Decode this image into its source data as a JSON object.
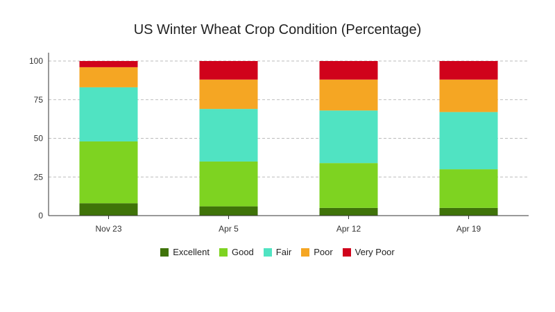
{
  "chart_data": {
    "type": "bar",
    "stacked": true,
    "title": "US Winter Wheat Crop Condition (Percentage)",
    "xlabel": "",
    "ylabel": "",
    "ylim": [
      0,
      100
    ],
    "yticks": [
      0,
      25,
      50,
      75,
      100
    ],
    "grid": true,
    "legend_position": "bottom",
    "categories": [
      "Nov 23",
      "Apr 5",
      "Apr 12",
      "Apr 19"
    ],
    "series": [
      {
        "name": "Excellent",
        "color": "#3f7309",
        "values": [
          8,
          6,
          5,
          5
        ]
      },
      {
        "name": "Good",
        "color": "#7ed321",
        "values": [
          40,
          29,
          29,
          25
        ]
      },
      {
        "name": "Fair",
        "color": "#50e3c2",
        "values": [
          35,
          34,
          34,
          37
        ]
      },
      {
        "name": "Poor",
        "color": "#f5a623",
        "values": [
          13,
          19,
          20,
          21
        ]
      },
      {
        "name": "Very Poor",
        "color": "#d0021b",
        "values": [
          4,
          12,
          12,
          12
        ]
      }
    ]
  }
}
